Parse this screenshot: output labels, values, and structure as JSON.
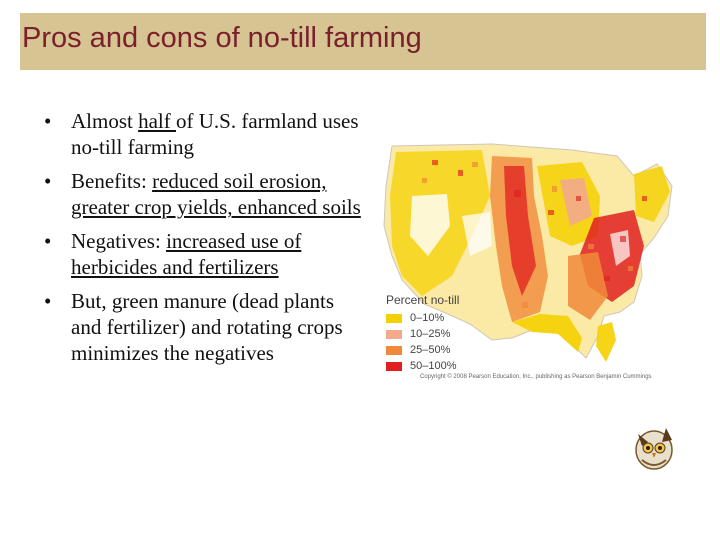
{
  "title": "Pros and cons of no-till farming",
  "bullets": [
    {
      "pre": "Almost ",
      "u": "half ",
      "post": "of U.S. farmland uses no-till farming"
    },
    {
      "pre": "Benefits: ",
      "u": "reduced soil erosion, greater crop yields, enhanced soils",
      "post": ""
    },
    {
      "pre": "Negatives: ",
      "u": "increased use of herbicides and fertilizers",
      "post": ""
    },
    {
      "pre": "But, green manure (dead plants and fertilizer) and rotating crops minimizes the negatives",
      "u": "",
      "post": ""
    }
  ],
  "legend": {
    "title": "Percent no-till",
    "items": [
      {
        "label": "0–10%",
        "color": "#f5d000"
      },
      {
        "label": "10–25%",
        "color": "#f2a98c"
      },
      {
        "label": "25–50%",
        "color": "#f08a3a"
      },
      {
        "label": "50–100%",
        "color": "#e02020"
      }
    ]
  },
  "copyright": "Copyright © 2008 Pearson Education, Inc., publishing as Pearson Benjamin Cummings",
  "colors": {
    "title_bar": "#d6c493",
    "title_text": "#7a1f2b"
  },
  "mascot_icon": "owl-mascot-icon"
}
